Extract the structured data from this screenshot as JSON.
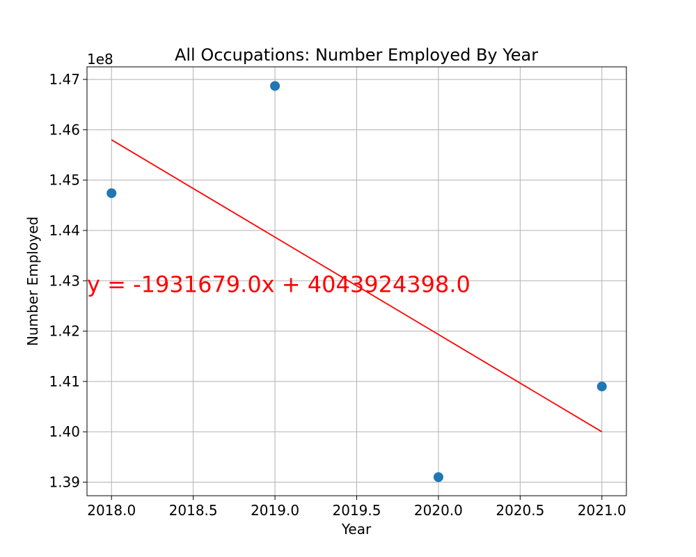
{
  "chart_data": {
    "type": "scatter",
    "title": "All Occupations: Number Employed By Year",
    "xlabel": "Year",
    "ylabel": "Number Employed",
    "y_offset_label": "1e8",
    "x_ticks": [
      "2018.0",
      "2018.5",
      "2019.0",
      "2019.5",
      "2020.0",
      "2020.5",
      "2021.0"
    ],
    "y_ticks": [
      "1.39",
      "1.40",
      "1.41",
      "1.42",
      "1.43",
      "1.44",
      "1.45",
      "1.46",
      "1.47"
    ],
    "xlim": [
      2017.85,
      2021.15
    ],
    "ylim": [
      1.3873,
      1.4725
    ],
    "grid": true,
    "series": [
      {
        "kind": "scatter",
        "color": "#1f77b4",
        "x": [
          2018,
          2019,
          2020,
          2021
        ],
        "y": [
          1.4474,
          1.4687,
          1.391,
          1.409
        ]
      },
      {
        "kind": "line",
        "color": "#ff0000",
        "x": [
          2018,
          2021
        ],
        "y": [
          1.458,
          1.4
        ]
      }
    ],
    "annotation": {
      "text": "y = -1931679.0x + 4043924398.0",
      "color": "#ff0000",
      "x": 2017.85,
      "y": 1.4293
    }
  }
}
